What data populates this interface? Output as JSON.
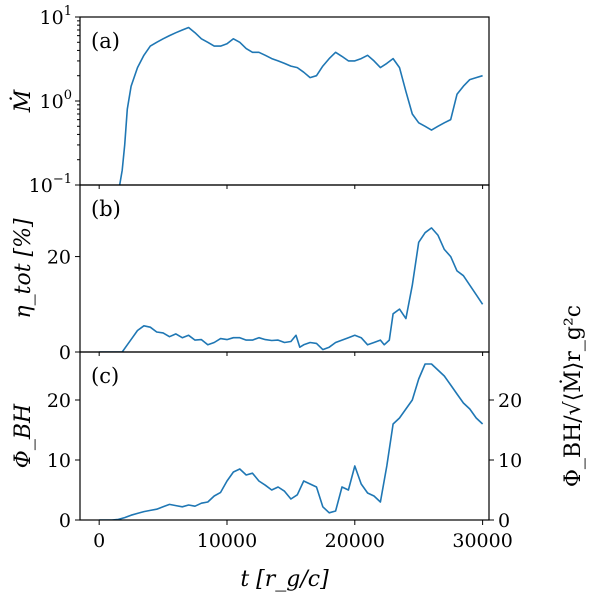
{
  "chart_data": [
    {
      "panel_label": "(a)",
      "type": "line",
      "yscale": "log",
      "ylim": [
        0.1,
        10
      ],
      "ylabel": "Ṁ",
      "yticks": [
        {
          "value": 0.1,
          "base": "10",
          "exp": "−1"
        },
        {
          "value": 1,
          "base": "10",
          "exp": "0"
        },
        {
          "value": 10,
          "base": "10",
          "exp": "1"
        }
      ],
      "xlim": [
        -1500,
        30500
      ],
      "color": "#1f77b4",
      "x": [
        0,
        1500,
        1800,
        2000,
        2200,
        2500,
        3000,
        3500,
        4000,
        4500,
        5000,
        5500,
        6000,
        6500,
        7000,
        7500,
        8000,
        8500,
        9000,
        9500,
        10000,
        10500,
        11000,
        11500,
        12000,
        12500,
        13000,
        13500,
        14000,
        14500,
        15000,
        15500,
        16000,
        16500,
        17000,
        17500,
        18000,
        18500,
        19000,
        19500,
        20000,
        20500,
        21000,
        21500,
        22000,
        22500,
        23000,
        23500,
        24000,
        24500,
        25000,
        25500,
        26000,
        26500,
        27000,
        27500,
        28000,
        28500,
        29000,
        29500,
        30000
      ],
      "y": [
        0.08,
        0.08,
        0.15,
        0.3,
        0.8,
        1.5,
        2.5,
        3.5,
        4.5,
        5.0,
        5.5,
        6.0,
        6.5,
        7.0,
        7.5,
        6.5,
        5.5,
        5.0,
        4.5,
        4.5,
        4.8,
        5.5,
        5.0,
        4.2,
        3.8,
        3.8,
        3.5,
        3.2,
        3.0,
        2.8,
        2.6,
        2.5,
        2.2,
        1.9,
        2.0,
        2.6,
        3.2,
        3.8,
        3.4,
        3.0,
        3.0,
        3.2,
        3.5,
        3.0,
        2.5,
        2.8,
        3.2,
        2.5,
        1.3,
        0.7,
        0.55,
        0.5,
        0.45,
        0.5,
        0.55,
        0.6,
        1.2,
        1.5,
        1.8,
        1.9,
        2.0
      ]
    },
    {
      "panel_label": "(b)",
      "type": "line",
      "ylim": [
        0,
        35
      ],
      "ylabel": "η_tot [%]",
      "yticks": [
        0,
        20
      ],
      "xlim": [
        -1500,
        30500
      ],
      "color": "#1f77b4",
      "x": [
        0,
        1800,
        2200,
        2600,
        3000,
        3500,
        4000,
        4500,
        5000,
        5500,
        6000,
        6500,
        7000,
        7500,
        8000,
        8500,
        9000,
        9500,
        10000,
        10500,
        11000,
        11500,
        12000,
        12500,
        13000,
        13500,
        14000,
        14500,
        15000,
        15400,
        15700,
        16000,
        16500,
        17000,
        17500,
        18000,
        18500,
        19000,
        19500,
        20000,
        20500,
        21000,
        21500,
        22000,
        22300,
        22700,
        23000,
        23500,
        24000,
        24500,
        25000,
        25500,
        26000,
        26500,
        27000,
        27500,
        28000,
        28500,
        29000,
        29500,
        30000
      ],
      "y": [
        0,
        0,
        1.5,
        3.0,
        4.5,
        5.5,
        5.2,
        4.2,
        4.0,
        3.2,
        3.8,
        3.0,
        3.5,
        2.5,
        2.6,
        1.5,
        2.0,
        2.8,
        2.6,
        3.0,
        3.0,
        2.5,
        2.5,
        3.0,
        2.6,
        2.4,
        2.5,
        2.0,
        2.2,
        3.5,
        1.0,
        1.5,
        2.0,
        1.8,
        0.5,
        1.0,
        2.0,
        2.5,
        3.0,
        3.5,
        3.0,
        1.5,
        2.0,
        2.5,
        1.5,
        2.5,
        8.0,
        9.0,
        7.0,
        14.0,
        23.0,
        25.0,
        26.0,
        24.5,
        21.5,
        20.0,
        17.0,
        16.0,
        14.0,
        12.0,
        10.0
      ]
    },
    {
      "panel_label": "(c)",
      "type": "line",
      "ylim": [
        0,
        28
      ],
      "ylabel": "Φ_BH",
      "yticks": [
        0,
        10,
        20
      ],
      "ylabel_right": "Φ_BH/√⟨Ṁ⟩r_g²c",
      "yticks_right": [
        0,
        10,
        20
      ],
      "xlim": [
        -1500,
        30500
      ],
      "xticks": [
        0,
        10000,
        20000,
        30000
      ],
      "xlabel": "t [r_g/c]",
      "color": "#1f77b4",
      "x": [
        0,
        1000,
        1500,
        2000,
        2500,
        3000,
        3500,
        4000,
        4500,
        5000,
        5500,
        6000,
        6500,
        7000,
        7500,
        8000,
        8500,
        9000,
        9500,
        10000,
        10500,
        11000,
        11500,
        12000,
        12500,
        13000,
        13500,
        14000,
        14500,
        15000,
        15500,
        16000,
        16500,
        17000,
        17500,
        18000,
        18500,
        19000,
        19500,
        20000,
        20500,
        21000,
        21500,
        22000,
        22500,
        23000,
        23500,
        24000,
        24500,
        25000,
        25500,
        26000,
        26500,
        27000,
        27500,
        28000,
        28500,
        29000,
        29500,
        30000
      ],
      "y": [
        0,
        0,
        0.1,
        0.4,
        0.8,
        1.1,
        1.4,
        1.6,
        1.8,
        2.2,
        2.6,
        2.4,
        2.2,
        2.5,
        2.3,
        2.8,
        3.0,
        4.0,
        4.6,
        6.5,
        8.0,
        8.5,
        7.5,
        7.8,
        6.5,
        5.8,
        5.0,
        5.5,
        4.8,
        3.5,
        4.2,
        6.5,
        6.0,
        5.5,
        2.2,
        1.2,
        1.5,
        5.5,
        5.0,
        9.0,
        6.0,
        4.5,
        4.0,
        3.0,
        9.0,
        16.0,
        17.0,
        18.5,
        20.0,
        23.5,
        26.0,
        26.0,
        25.0,
        24.0,
        22.5,
        21.0,
        19.5,
        18.5,
        17.0,
        16.0
      ]
    }
  ]
}
